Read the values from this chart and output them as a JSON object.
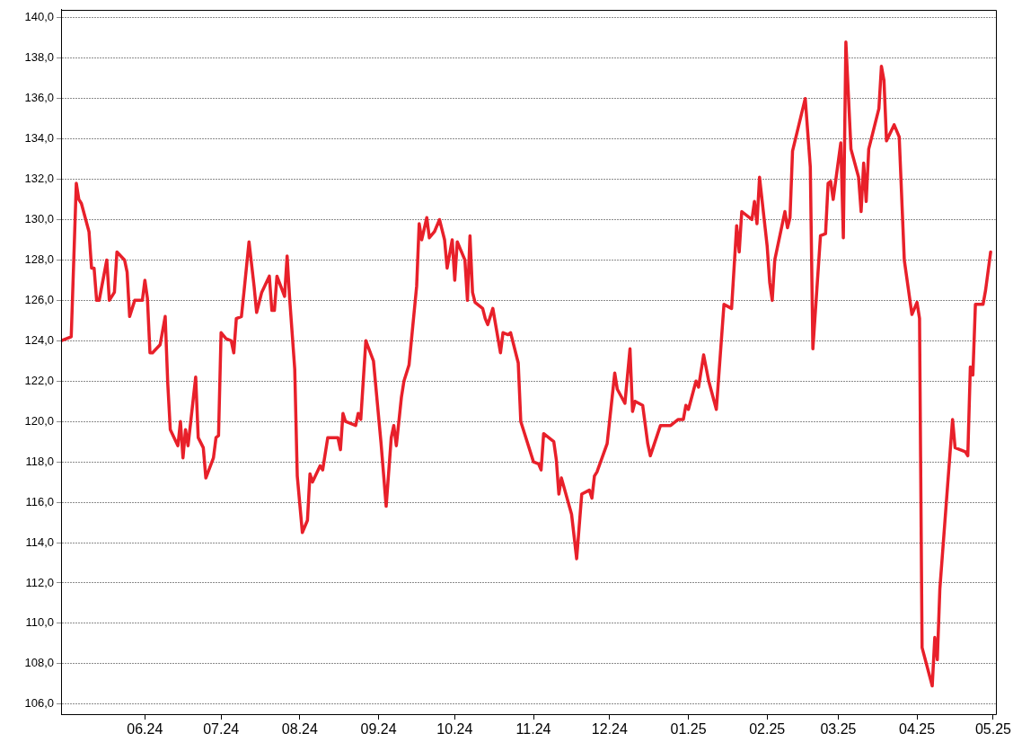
{
  "chart_data": {
    "type": "line",
    "color": "#e8202a",
    "marker": "none",
    "line_style": "solid",
    "grid": "y",
    "x": [
      "2024-04-29",
      "2024-05-03",
      "2024-05-05",
      "2024-05-06",
      "2024-05-07",
      "2024-05-10",
      "2024-05-11",
      "2024-05-12",
      "2024-05-13",
      "2024-05-14",
      "2024-05-17",
      "2024-05-18",
      "2024-05-20",
      "2024-05-21",
      "2024-05-24",
      "2024-05-25",
      "2024-05-26",
      "2024-05-28",
      "2024-05-31",
      "2024-06-01",
      "2024-06-02",
      "2024-06-03",
      "2024-06-04",
      "2024-06-07",
      "2024-06-09",
      "2024-06-10",
      "2024-06-11",
      "2024-06-14",
      "2024-06-15",
      "2024-06-16",
      "2024-06-17",
      "2024-06-18",
      "2024-06-21",
      "2024-06-22",
      "2024-06-24",
      "2024-06-25",
      "2024-06-28",
      "2024-06-29",
      "2024-06-30",
      "2024-07-01",
      "2024-07-03",
      "2024-07-05",
      "2024-07-06",
      "2024-07-07",
      "2024-07-09",
      "2024-07-10",
      "2024-07-12",
      "2024-07-14",
      "2024-07-15",
      "2024-07-17",
      "2024-07-20",
      "2024-07-21",
      "2024-07-22",
      "2024-07-23",
      "2024-07-26",
      "2024-07-27",
      "2024-07-28",
      "2024-07-30",
      "2024-07-31",
      "2024-08-02",
      "2024-08-04",
      "2024-08-05",
      "2024-08-06",
      "2024-08-09",
      "2024-08-10",
      "2024-08-12",
      "2024-08-16",
      "2024-08-17",
      "2024-08-18",
      "2024-08-19",
      "2024-08-23",
      "2024-08-24",
      "2024-08-25",
      "2024-08-27",
      "2024-08-30",
      "2024-09-02",
      "2024-09-04",
      "2024-09-06",
      "2024-09-07",
      "2024-09-08",
      "2024-09-10",
      "2024-09-11",
      "2024-09-13",
      "2024-09-16",
      "2024-09-17",
      "2024-09-18",
      "2024-09-20",
      "2024-09-21",
      "2024-09-23",
      "2024-09-25",
      "2024-09-27",
      "2024-09-28",
      "2024-09-30",
      "2024-10-01",
      "2024-10-02",
      "2024-10-05",
      "2024-10-06",
      "2024-10-07",
      "2024-10-08",
      "2024-10-09",
      "2024-10-12",
      "2024-10-13",
      "2024-10-14",
      "2024-10-16",
      "2024-10-19",
      "2024-10-20",
      "2024-10-22",
      "2024-10-23",
      "2024-10-26",
      "2024-10-27",
      "2024-11-01",
      "2024-11-03",
      "2024-11-04",
      "2024-11-05",
      "2024-11-09",
      "2024-11-10",
      "2024-11-11",
      "2024-11-12",
      "2024-11-16",
      "2024-11-18",
      "2024-11-20",
      "2024-11-23",
      "2024-11-24",
      "2024-11-25",
      "2024-11-26",
      "2024-11-30",
      "2024-12-03",
      "2024-12-04",
      "2024-12-07",
      "2024-12-09",
      "2024-12-10",
      "2024-12-11",
      "2024-12-14",
      "2024-12-16",
      "2024-12-17",
      "2024-12-21",
      "2024-12-25",
      "2024-12-28",
      "2024-12-30",
      "2024-12-31",
      "2025-01-01",
      "2025-01-04",
      "2025-01-05",
      "2025-01-07",
      "2025-01-09",
      "2025-01-12",
      "2025-01-15",
      "2025-01-18",
      "2025-01-20",
      "2025-01-21",
      "2025-01-22",
      "2025-01-26",
      "2025-01-27",
      "2025-01-28",
      "2025-01-29",
      "2025-02-01",
      "2025-02-02",
      "2025-02-03",
      "2025-02-04",
      "2025-02-08",
      "2025-02-09",
      "2025-02-10",
      "2025-02-11",
      "2025-02-16",
      "2025-02-18",
      "2025-02-19",
      "2025-02-22",
      "2025-02-24",
      "2025-02-25",
      "2025-02-26",
      "2025-02-27",
      "2025-03-02",
      "2025-03-03",
      "2025-03-04",
      "2025-03-06",
      "2025-03-09",
      "2025-03-10",
      "2025-03-11",
      "2025-03-12",
      "2025-03-13",
      "2025-03-17",
      "2025-03-18",
      "2025-03-19",
      "2025-03-20",
      "2025-03-23",
      "2025-03-25",
      "2025-03-27",
      "2025-03-30",
      "2025-04-01",
      "2025-04-02",
      "2025-04-03",
      "2025-04-07",
      "2025-04-08",
      "2025-04-09",
      "2025-04-10",
      "2025-04-15",
      "2025-04-16",
      "2025-04-20",
      "2025-04-21",
      "2025-04-22",
      "2025-04-23",
      "2025-04-24",
      "2025-04-27",
      "2025-04-28",
      "2025-04-30"
    ],
    "values": [
      124.0,
      124.2,
      131.8,
      131.0,
      130.8,
      129.4,
      127.6,
      127.6,
      126.0,
      126.0,
      128.0,
      126.0,
      126.4,
      128.4,
      128.0,
      127.4,
      125.2,
      126.0,
      126.0,
      127.0,
      126.1,
      123.4,
      123.4,
      123.8,
      125.2,
      121.9,
      119.6,
      118.8,
      120.0,
      118.2,
      119.6,
      118.8,
      122.2,
      119.2,
      118.7,
      117.2,
      118.2,
      119.2,
      119.3,
      124.4,
      124.1,
      124.0,
      123.4,
      125.1,
      125.2,
      126.4,
      128.9,
      126.7,
      125.4,
      126.4,
      127.2,
      125.5,
      125.5,
      127.2,
      126.2,
      128.2,
      126.1,
      122.6,
      117.3,
      114.5,
      115.1,
      117.4,
      117.0,
      117.8,
      117.6,
      119.2,
      119.2,
      118.6,
      120.4,
      120.0,
      119.8,
      120.4,
      120.1,
      124.0,
      123.0,
      118.9,
      115.8,
      119.2,
      119.8,
      118.8,
      121.2,
      122.0,
      122.8,
      126.7,
      129.8,
      129.0,
      130.1,
      129.1,
      129.4,
      130.0,
      129.0,
      127.6,
      129.0,
      127.0,
      128.9,
      128.0,
      126.0,
      129.2,
      126.4,
      125.9,
      125.6,
      125.1,
      124.8,
      125.6,
      123.4,
      124.4,
      124.3,
      124.4,
      122.9,
      120.0,
      118.0,
      117.9,
      117.6,
      119.4,
      119.0,
      118.1,
      116.4,
      117.2,
      115.4,
      113.2,
      116.4,
      116.6,
      116.2,
      117.3,
      117.5,
      118.9,
      122.4,
      121.6,
      120.9,
      123.6,
      120.5,
      121.0,
      120.8,
      118.9,
      118.3,
      119.8,
      119.8,
      120.1,
      120.1,
      120.8,
      120.6,
      122.0,
      121.7,
      123.3,
      122.0,
      120.6,
      125.8,
      125.6,
      129.7,
      128.4,
      130.4,
      130.0,
      130.9,
      129.8,
      132.1,
      128.7,
      126.9,
      126.0,
      128.0,
      130.4,
      129.6,
      130.1,
      133.4,
      136.0,
      132.6,
      123.6,
      129.2,
      129.3,
      131.8,
      131.9,
      131.0,
      133.8,
      129.1,
      138.8,
      133.5,
      132.1,
      130.4,
      132.8,
      130.9,
      133.5,
      135.5,
      137.6,
      136.9,
      133.9,
      134.7,
      134.1,
      128.0,
      125.3,
      125.9,
      125.1,
      108.8,
      106.9,
      109.3,
      108.2,
      111.7,
      120.1,
      118.7,
      118.5,
      118.3,
      122.7,
      122.3,
      125.8,
      125.8,
      126.5,
      128.4
    ],
    "xlim": [
      "2024-04-29",
      "2025-05-02"
    ],
    "xticks": [
      {
        "value": "2024-06-01",
        "label": "06.24"
      },
      {
        "value": "2024-07-01",
        "label": "07.24"
      },
      {
        "value": "2024-08-01",
        "label": "08.24"
      },
      {
        "value": "2024-09-01",
        "label": "09.24"
      },
      {
        "value": "2024-10-01",
        "label": "10.24"
      },
      {
        "value": "2024-11-01",
        "label": "11.24"
      },
      {
        "value": "2024-12-01",
        "label": "12.24"
      },
      {
        "value": "2025-01-01",
        "label": "01.25"
      },
      {
        "value": "2025-02-01",
        "label": "02.25"
      },
      {
        "value": "2025-03-01",
        "label": "03.25"
      },
      {
        "value": "2025-04-01",
        "label": "04.25"
      },
      {
        "value": "2025-05-01",
        "label": "05.25"
      }
    ],
    "ylim": [
      105.5,
      140.4
    ],
    "yticks": [
      {
        "value": 106,
        "label": "106,0"
      },
      {
        "value": 108,
        "label": "108,0"
      },
      {
        "value": 110,
        "label": "110,0"
      },
      {
        "value": 112,
        "label": "112,0"
      },
      {
        "value": 114,
        "label": "114,0"
      },
      {
        "value": 116,
        "label": "116,0"
      },
      {
        "value": 118,
        "label": "118,0"
      },
      {
        "value": 120,
        "label": "120,0"
      },
      {
        "value": 122,
        "label": "122,0"
      },
      {
        "value": 124,
        "label": "124,0"
      },
      {
        "value": 126,
        "label": "126,0"
      },
      {
        "value": 128,
        "label": "128,0"
      },
      {
        "value": 130,
        "label": "130,0"
      },
      {
        "value": 132,
        "label": "132,0"
      },
      {
        "value": 134,
        "label": "134,0"
      },
      {
        "value": 136,
        "label": "136,0"
      },
      {
        "value": 138,
        "label": "138,0"
      },
      {
        "value": 140,
        "label": "140,0"
      }
    ]
  }
}
